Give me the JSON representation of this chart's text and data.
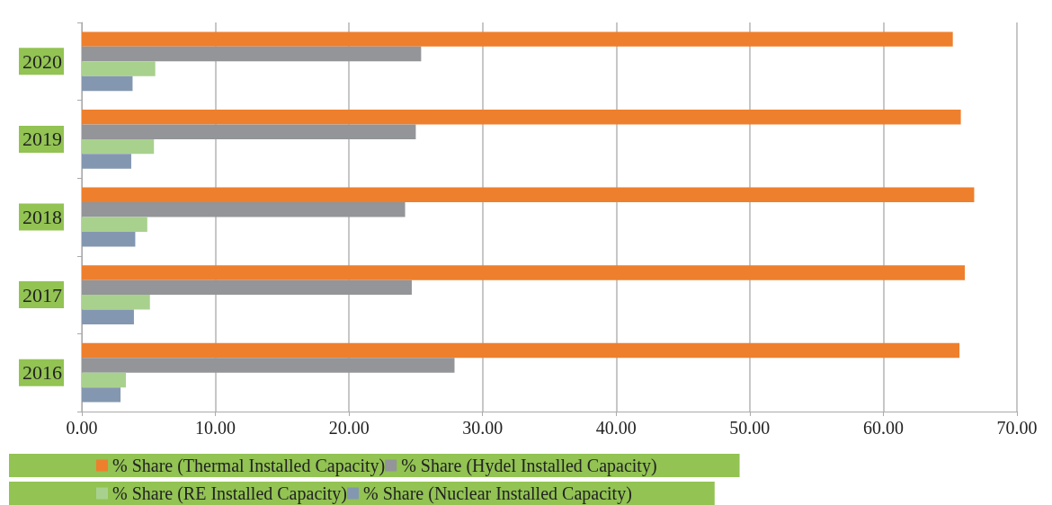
{
  "chart_data": {
    "type": "bar",
    "orientation": "horizontal",
    "categories": [
      "2020",
      "2019",
      "2018",
      "2017",
      "2016"
    ],
    "series": [
      {
        "name": "% Share (Thermal Installed Capacity)",
        "color": "#ee7f2d",
        "values": [
          65.2,
          65.8,
          66.8,
          66.1,
          65.7
        ]
      },
      {
        "name": "% Share (Hydel Installed Capacity)",
        "color": "#939598",
        "values": [
          25.4,
          25.0,
          24.2,
          24.7,
          27.9
        ]
      },
      {
        "name": "% Share (RE Installed Capacity)",
        "color": "#a9d18e",
        "values": [
          5.5,
          5.4,
          4.9,
          5.1,
          3.3
        ]
      },
      {
        "name": "% Share (Nuclear Installed Capacity)",
        "color": "#8497b0",
        "values": [
          3.8,
          3.7,
          4.0,
          3.9,
          2.9
        ]
      }
    ],
    "xlim": [
      0,
      70
    ],
    "xticks": [
      {
        "value": 0,
        "label": "0.00"
      },
      {
        "value": 10,
        "label": "10.00"
      },
      {
        "value": 20,
        "label": "20.00"
      },
      {
        "value": 30,
        "label": "30.00"
      },
      {
        "value": 40,
        "label": "40.00"
      },
      {
        "value": 50,
        "label": "50.00"
      },
      {
        "value": 60,
        "label": "60.00"
      },
      {
        "value": 70,
        "label": "70.00"
      }
    ],
    "grid": "x",
    "legend": "bottom"
  }
}
